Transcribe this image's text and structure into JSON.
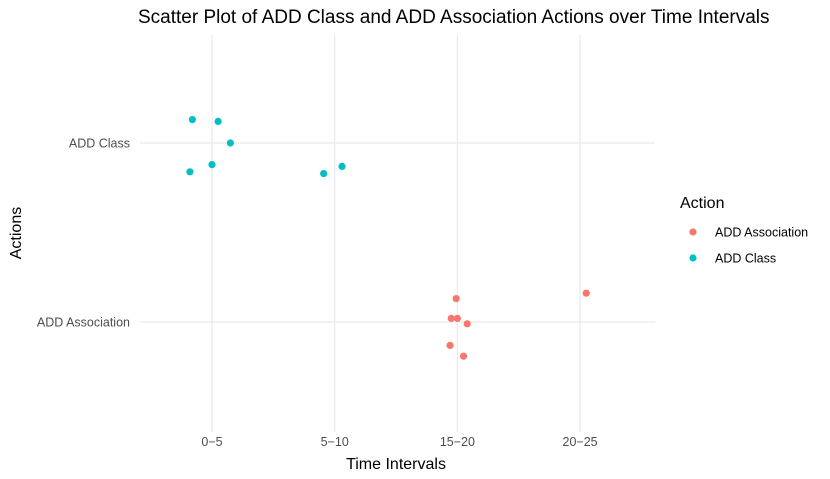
{
  "chart_data": {
    "type": "scatter",
    "title": "Scatter Plot of ADD Class and ADD Association Actions over Time Intervals",
    "xlabel": "Time Intervals",
    "ylabel": "Actions",
    "x_categories": [
      "0−5",
      "5−10",
      "15−20",
      "20−25"
    ],
    "y_categories": [
      "ADD Association",
      "ADD Class"
    ],
    "legend": {
      "title": "Action",
      "position": "right",
      "entries": [
        {
          "label": "ADD Association",
          "color": "#F8766D"
        },
        {
          "label": "ADD Class",
          "color": "#00BFC4"
        }
      ]
    },
    "grid": true,
    "jitter": true,
    "series": [
      {
        "name": "ADD Association",
        "color": "#F8766D",
        "points": [
          {
            "x": "15−20",
            "x_offset": -0.01,
            "y_offset": 0.13
          },
          {
            "x": "15−20",
            "x_offset": -0.05,
            "y_offset": 0.02
          },
          {
            "x": "15−20",
            "x_offset": 0.0,
            "y_offset": 0.02
          },
          {
            "x": "15−20",
            "x_offset": 0.08,
            "y_offset": -0.01
          },
          {
            "x": "15−20",
            "x_offset": -0.06,
            "y_offset": -0.13
          },
          {
            "x": "15−20",
            "x_offset": 0.05,
            "y_offset": -0.19
          },
          {
            "x": "20−25",
            "x_offset": 0.05,
            "y_offset": 0.16
          }
        ]
      },
      {
        "name": "ADD Class",
        "color": "#00BFC4",
        "points": [
          {
            "x": "0−5",
            "x_offset": -0.16,
            "y_offset": 0.13
          },
          {
            "x": "0−5",
            "x_offset": 0.05,
            "y_offset": 0.12
          },
          {
            "x": "0−5",
            "x_offset": 0.15,
            "y_offset": 0.0
          },
          {
            "x": "0−5",
            "x_offset": 0.0,
            "y_offset": -0.12
          },
          {
            "x": "0−5",
            "x_offset": -0.18,
            "y_offset": -0.16
          },
          {
            "x": "5−10",
            "x_offset": -0.09,
            "y_offset": -0.17
          },
          {
            "x": "5−10",
            "x_offset": 0.06,
            "y_offset": -0.13
          }
        ]
      }
    ]
  }
}
